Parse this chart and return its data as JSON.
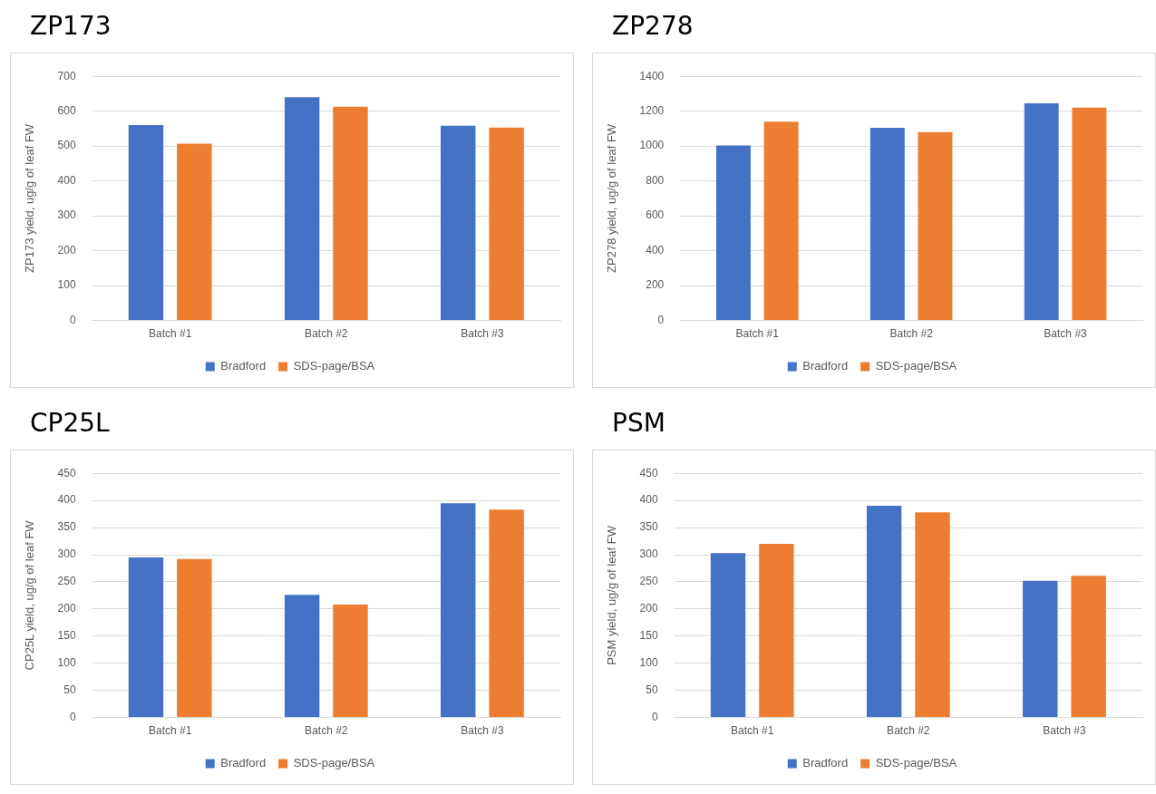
{
  "chart_data": [
    {
      "type": "bar",
      "title": "ZP173",
      "ylabel": "ZP173 yield, ug/g of leaf FW",
      "categories": [
        "Batch #1",
        "Batch #2",
        "Batch #3"
      ],
      "series": [
        {
          "name": "Bradford",
          "color": "#4472c4",
          "values": [
            560,
            640,
            558
          ]
        },
        {
          "name": "SDS-page/BSA",
          "color": "#ed7d31",
          "values": [
            507,
            613,
            553
          ]
        }
      ],
      "ylim": [
        0,
        700
      ],
      "yticks": [
        0,
        100,
        200,
        300,
        400,
        500,
        600,
        700
      ],
      "grid": "y",
      "legend": "bottom"
    },
    {
      "type": "bar",
      "title": "ZP278",
      "ylabel": "ZP278 yield, ug/g of leaf FW",
      "categories": [
        "Batch #1",
        "Batch #2",
        "Batch #3"
      ],
      "series": [
        {
          "name": "Bradford",
          "color": "#4472c4",
          "values": [
            1003,
            1105,
            1245
          ]
        },
        {
          "name": "SDS-page/BSA",
          "color": "#ed7d31",
          "values": [
            1140,
            1080,
            1220
          ]
        }
      ],
      "ylim": [
        0,
        1400
      ],
      "yticks": [
        0,
        200,
        400,
        600,
        800,
        1000,
        1200,
        1400
      ],
      "grid": "y",
      "legend": "bottom"
    },
    {
      "type": "bar",
      "title": "CP25L",
      "ylabel": "CP25L yield, ug/g of leaf FW",
      "categories": [
        "Batch #1",
        "Batch #2",
        "Batch #3"
      ],
      "series": [
        {
          "name": "Bradford",
          "color": "#4472c4",
          "values": [
            295,
            226,
            395
          ]
        },
        {
          "name": "SDS-page/BSA",
          "color": "#ed7d31",
          "values": [
            292,
            208,
            383
          ]
        }
      ],
      "ylim": [
        0,
        450
      ],
      "yticks": [
        0,
        50,
        100,
        150,
        200,
        250,
        300,
        350,
        400,
        450
      ],
      "grid": "y",
      "legend": "bottom"
    },
    {
      "type": "bar",
      "title": "PSM",
      "ylabel": "PSM yield, ug/g of leaf FW",
      "categories": [
        "Batch #1",
        "Batch #2",
        "Batch #3"
      ],
      "series": [
        {
          "name": "Bradford",
          "color": "#4472c4",
          "values": [
            303,
            390,
            252
          ]
        },
        {
          "name": "SDS-page/BSA",
          "color": "#ed7d31",
          "values": [
            320,
            378,
            261
          ]
        }
      ],
      "ylim": [
        0,
        450
      ],
      "yticks": [
        0,
        50,
        100,
        150,
        200,
        250,
        300,
        350,
        400,
        450
      ],
      "grid": "y",
      "legend": "bottom"
    }
  ]
}
